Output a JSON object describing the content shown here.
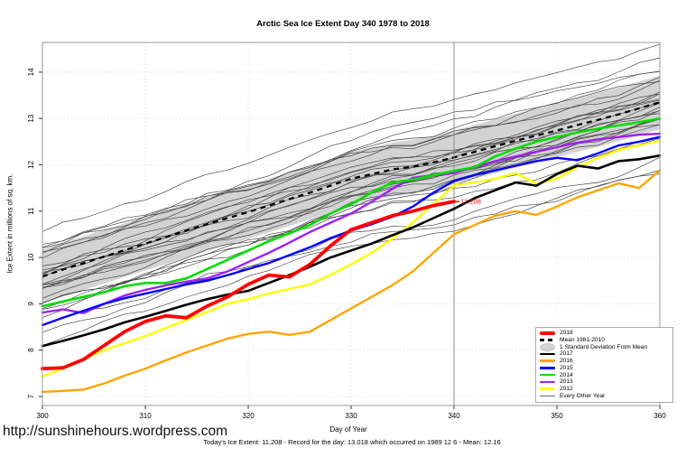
{
  "page": {
    "url_text": "http://sunshinehours.wordpress.com",
    "caption": "Today's Ice Extent: 11.208  - Record for the day: 13.018 which occurred on 1989 12 6  - Mean: 12.16"
  },
  "chart_data": {
    "type": "line",
    "title": "Arctic Sea Ice Extent Day 340 1978 to 2018",
    "xlabel": "Day of Year",
    "ylabel": "Ice Extent in millions of sq. km.",
    "x_axis": {
      "range": [
        300,
        360
      ],
      "ticks": [
        300,
        310,
        320,
        330,
        340,
        350,
        360
      ]
    },
    "y_axis": {
      "range": [
        6.8,
        14.65
      ],
      "ticks": [
        7,
        8,
        9,
        10,
        11,
        12,
        13,
        14
      ]
    },
    "grid": {
      "show": true,
      "style": "dotted",
      "color": "#d6d6d6"
    },
    "marker_line": {
      "x": 340,
      "color": "#8c8c8c"
    },
    "annotation": {
      "text": "11.208",
      "x": 340,
      "y": 11.208,
      "color": "#ff0000"
    },
    "band": {
      "label": "1 Standard Deviation From Mean",
      "color": "#d3d3d3",
      "base": "Mean 1981-2010",
      "offset": 0.58
    },
    "x_start": 300,
    "x_step": 2,
    "series": [
      {
        "name": "Mean 1981-2010",
        "color": "#000000",
        "width": 2.3,
        "dash": "6 5",
        "values": [
          9.59,
          9.74,
          9.88,
          10.02,
          10.16,
          10.3,
          10.44,
          10.58,
          10.72,
          10.85,
          10.98,
          11.12,
          11.26,
          11.4,
          11.55,
          11.7,
          11.8,
          11.9,
          11.96,
          12.05,
          12.16,
          12.28,
          12.4,
          12.52,
          12.63,
          12.74,
          12.86,
          12.97,
          13.09,
          13.22,
          13.35
        ]
      },
      {
        "name": "2012",
        "color": "#ffff00",
        "width": 2.4,
        "values": [
          7.43,
          7.6,
          7.8,
          8.0,
          8.15,
          8.3,
          8.48,
          8.65,
          8.82,
          9.0,
          9.1,
          9.22,
          9.32,
          9.42,
          9.62,
          9.85,
          10.1,
          10.4,
          10.75,
          11.15,
          11.55,
          11.62,
          11.7,
          11.82,
          11.6,
          11.7,
          11.95,
          12.15,
          12.32,
          12.42,
          12.52
        ]
      },
      {
        "name": "2013",
        "color": "#a020f0",
        "width": 2.4,
        "values": [
          8.81,
          8.88,
          8.8,
          9.0,
          9.18,
          9.3,
          9.4,
          9.48,
          9.55,
          9.7,
          9.9,
          10.1,
          10.32,
          10.55,
          10.75,
          10.95,
          11.2,
          11.48,
          11.72,
          11.78,
          11.82,
          11.95,
          12.08,
          12.18,
          12.28,
          12.38,
          12.48,
          12.55,
          12.6,
          12.65,
          12.67
        ]
      },
      {
        "name": "2014",
        "color": "#00dd00",
        "width": 2.6,
        "values": [
          8.95,
          9.05,
          9.15,
          9.25,
          9.38,
          9.45,
          9.45,
          9.55,
          9.75,
          9.95,
          10.15,
          10.35,
          10.52,
          10.7,
          10.95,
          11.15,
          11.4,
          11.62,
          11.68,
          11.78,
          11.87,
          11.95,
          12.18,
          12.35,
          12.5,
          12.6,
          12.7,
          12.78,
          12.85,
          12.92,
          13.0
        ]
      },
      {
        "name": "2015",
        "color": "#0000ff",
        "width": 2.4,
        "values": [
          8.54,
          8.7,
          8.85,
          9.0,
          9.12,
          9.22,
          9.32,
          9.42,
          9.5,
          9.62,
          9.75,
          9.88,
          10.05,
          10.22,
          10.42,
          10.58,
          10.72,
          10.88,
          11.1,
          11.4,
          11.65,
          11.78,
          11.88,
          11.98,
          12.08,
          12.15,
          12.1,
          12.25,
          12.42,
          12.5,
          12.6
        ]
      },
      {
        "name": "2016",
        "color": "#ffa500",
        "width": 2.4,
        "values": [
          7.1,
          7.12,
          7.15,
          7.28,
          7.45,
          7.6,
          7.78,
          7.95,
          8.1,
          8.25,
          8.35,
          8.4,
          8.33,
          8.4,
          8.65,
          8.9,
          9.15,
          9.4,
          9.7,
          10.1,
          10.5,
          10.7,
          10.9,
          11.0,
          10.92,
          11.1,
          11.3,
          11.45,
          11.6,
          11.5,
          11.88
        ]
      },
      {
        "name": "2017",
        "color": "#000000",
        "width": 2.6,
        "values": [
          8.09,
          8.2,
          8.32,
          8.45,
          8.6,
          8.72,
          8.85,
          8.98,
          9.1,
          9.2,
          9.28,
          9.45,
          9.62,
          9.8,
          10.0,
          10.15,
          10.3,
          10.48,
          10.65,
          10.85,
          11.05,
          11.28,
          11.45,
          11.62,
          11.55,
          11.8,
          11.98,
          11.92,
          12.08,
          12.12,
          12.2
        ]
      },
      {
        "name": "2018",
        "color": "#ff0000",
        "width": 3.8,
        "values": [
          7.6,
          7.62,
          7.8,
          8.1,
          8.4,
          8.62,
          8.74,
          8.7,
          8.95,
          9.15,
          9.42,
          9.62,
          9.58,
          9.85,
          10.25,
          10.6,
          10.75,
          10.9,
          11.0,
          11.12,
          11.208
        ]
      }
    ],
    "other_years": {
      "label": "Every Other Year",
      "color": "#3f3f3f",
      "width": 0.65,
      "count": 28,
      "seed": 11,
      "noise": 0.3,
      "offsets": [
        -1.5,
        -1.25,
        -1.05,
        -0.9,
        -0.78,
        -0.66,
        -0.55,
        -0.48,
        -0.42,
        -0.36,
        -0.3,
        -0.25,
        -0.2,
        -0.15,
        -0.1,
        -0.05,
        0.0,
        0.05,
        0.1,
        0.16,
        0.22,
        0.3,
        0.38,
        0.48,
        0.58,
        0.7,
        0.82,
        0.95
      ]
    },
    "legend": {
      "position": "bottom-right",
      "items": [
        {
          "label": "2018",
          "type": "thick-line",
          "color": "#ff0000"
        },
        {
          "label": "Mean 1981-2010",
          "type": "dashed-line",
          "color": "#000000"
        },
        {
          "label": "1 Standard Deviation From Mean",
          "type": "patch",
          "color": "#d3d3d3"
        },
        {
          "label": "2017",
          "type": "line",
          "color": "#000000"
        },
        {
          "label": "2016",
          "type": "line",
          "color": "#ffa500"
        },
        {
          "label": "2015",
          "type": "line",
          "color": "#0000ff"
        },
        {
          "label": "2014",
          "type": "line",
          "color": "#00dd00"
        },
        {
          "label": "2013",
          "type": "line",
          "color": "#a020f0"
        },
        {
          "label": "2012",
          "type": "line",
          "color": "#ffff00"
        },
        {
          "label": "Every Other Year",
          "type": "thin-line",
          "color": "#666666"
        }
      ]
    }
  }
}
